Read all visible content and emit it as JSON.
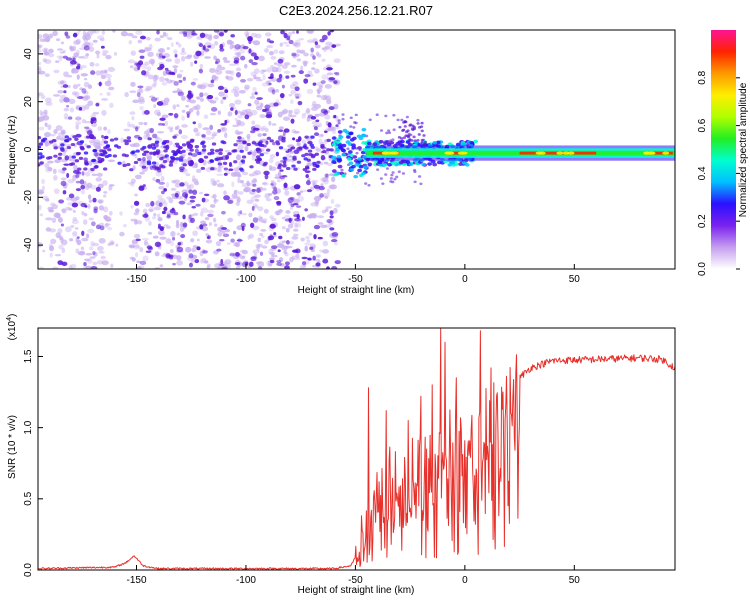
{
  "figure": {
    "title": "C2E3.2024.256.12.21.R07"
  },
  "colors": {
    "background": "#ffffff",
    "snr_line": "#e8302a",
    "dot_main": "#5a18d8",
    "dot_faint": "#c8aef0",
    "axis": "#000000"
  },
  "chart_data": [
    {
      "type": "heatmap",
      "xlabel": "Height of straight line (km)",
      "ylabel": "Frequency (Hz)",
      "xlim": [
        -195,
        96
      ],
      "ylim": [
        -50,
        50
      ],
      "x_ticks": [
        -150,
        -100,
        -50,
        0,
        50
      ],
      "y_ticks": [
        -40,
        -20,
        0,
        20,
        40
      ],
      "colorbar": {
        "label": "Normalized spectral amplitude",
        "range": [
          0,
          1
        ],
        "ticks": [
          "0.0",
          "0.2",
          "0.4",
          "0.6",
          "0.8"
        ],
        "colormap": [
          "#ffffff",
          "#c59ef0",
          "#7a22ee",
          "#2b10ff",
          "#00bfff",
          "#00ffd0",
          "#22ee22",
          "#b0ff00",
          "#ffee00",
          "#ff9900",
          "#ff2200",
          "#ff1493"
        ]
      },
      "features": {
        "noise_region_x": [
          -195,
          -58
        ],
        "signal_band_center_hz": -1.5,
        "strong_band_start_km": -45,
        "peak_segments_km": [
          [
            -42,
            -30
          ],
          [
            -8,
            0
          ],
          [
            25,
            60
          ],
          [
            83,
            95
          ]
        ]
      }
    },
    {
      "type": "line",
      "xlabel": "Height of straight line (km)",
      "ylabel": "SNR (10 * v/v)",
      "y_scale_label": "(x10^4)",
      "xlim": [
        -195,
        96
      ],
      "ylim": [
        0,
        1.7
      ],
      "x_ticks": [
        -150,
        -100,
        -50,
        0,
        50
      ],
      "y_ticks": [
        0.0,
        0.5,
        1.0,
        1.5
      ],
      "series": [
        {
          "color": "#e8302a",
          "profile": [
            [
              -195,
              0.01
            ],
            [
              -160,
              0.02
            ],
            [
              -155,
              0.05
            ],
            [
              -151,
              0.1
            ],
            [
              -147,
              0.03
            ],
            [
              -140,
              0.01
            ],
            [
              -100,
              0.01
            ],
            [
              -60,
              0.01
            ],
            [
              -52,
              0.03
            ],
            [
              -48,
              0.15
            ],
            [
              -45,
              0.45
            ],
            [
              -40,
              0.6
            ],
            [
              -35,
              0.7
            ],
            [
              -30,
              0.65
            ],
            [
              -25,
              0.7
            ],
            [
              -20,
              0.75
            ],
            [
              -15,
              0.8
            ],
            [
              -10,
              0.85
            ],
            [
              -5,
              0.9
            ],
            [
              0,
              0.95
            ],
            [
              5,
              1.0
            ],
            [
              10,
              1.05
            ],
            [
              15,
              1.1
            ],
            [
              20,
              1.2
            ],
            [
              25,
              1.35
            ],
            [
              30,
              1.42
            ],
            [
              40,
              1.47
            ],
            [
              60,
              1.48
            ],
            [
              80,
              1.49
            ],
            [
              90,
              1.48
            ],
            [
              96,
              1.42
            ]
          ],
          "spikes": [
            [
              -44,
              1.28
            ],
            [
              -36,
              1.12
            ],
            [
              -26,
              1.05
            ],
            [
              -20,
              1.22
            ],
            [
              -15,
              1.3
            ],
            [
              -11,
              1.7
            ],
            [
              -9,
              1.6
            ],
            [
              -4,
              1.35
            ],
            [
              7,
              1.68
            ],
            [
              12,
              1.42
            ]
          ]
        }
      ]
    }
  ]
}
